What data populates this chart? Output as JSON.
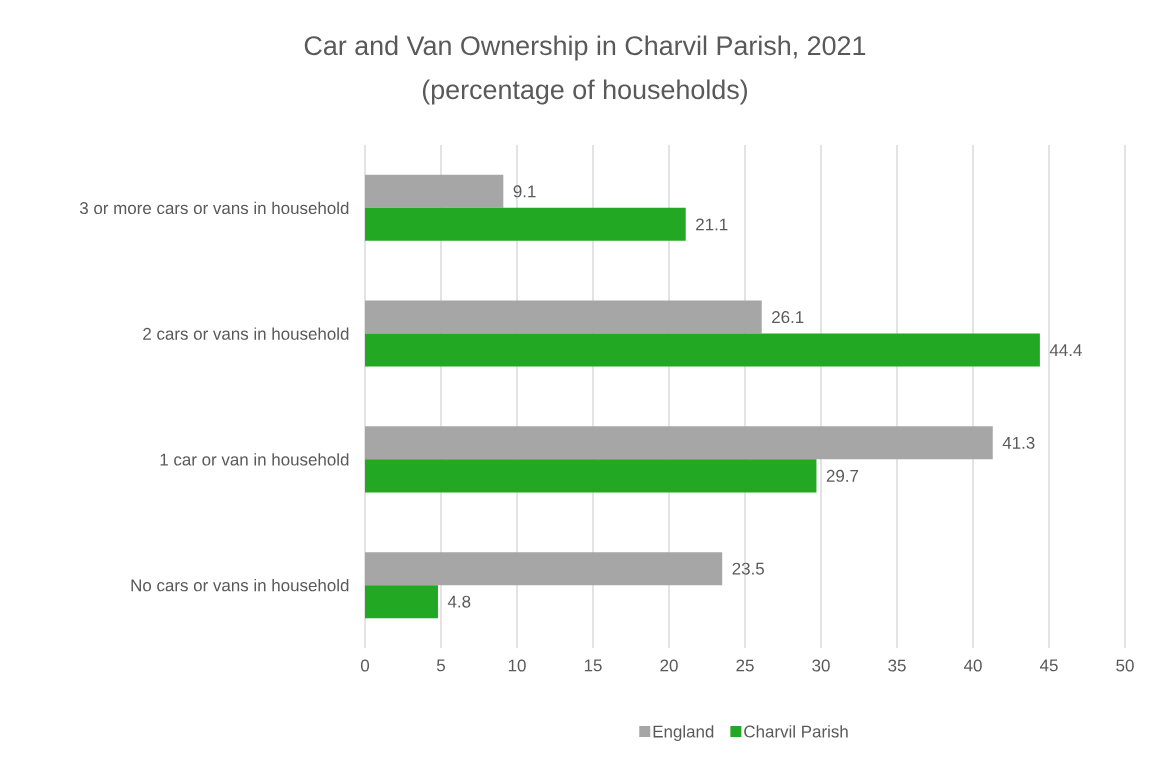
{
  "chart_data": {
    "type": "bar",
    "orientation": "horizontal",
    "title": "Car and Van Ownership in Charvil Parish, 2021",
    "subtitle": "(percentage of households)",
    "categories": [
      "3 or more cars or vans in household",
      "2 cars or vans in household",
      "1 car or van in household",
      "No cars or vans in household"
    ],
    "series": [
      {
        "name": "England",
        "color": "#a6a6a6",
        "values": [
          9.1,
          26.1,
          41.3,
          23.5
        ]
      },
      {
        "name": "Charvil Parish",
        "color": "#22a822",
        "values": [
          21.1,
          44.4,
          29.7,
          4.8
        ]
      }
    ],
    "xlim": [
      0,
      50
    ],
    "xticks": [
      0,
      5,
      10,
      15,
      20,
      25,
      30,
      35,
      40,
      45,
      50
    ],
    "grid": "x",
    "legend": "bottom",
    "data_labels": true
  }
}
